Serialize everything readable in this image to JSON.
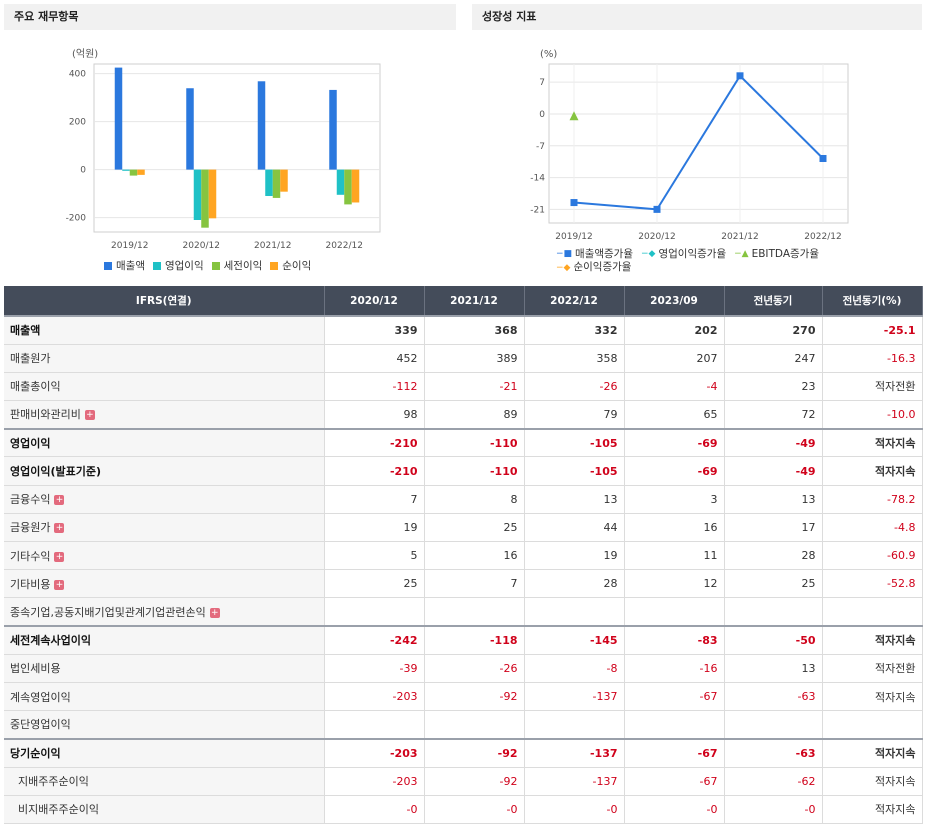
{
  "panels": {
    "left_title": "주요 재무항목",
    "right_title": "성장성 지표"
  },
  "chart_data": [
    {
      "type": "bar",
      "unit_label": "(억원)",
      "categories": [
        "2019/12",
        "2020/12",
        "2021/12",
        "2022/12"
      ],
      "yticks": [
        400,
        200,
        0,
        -200
      ],
      "ylim": [
        -260,
        440
      ],
      "grid": true,
      "legend": "bottom",
      "series": [
        {
          "name": "매출액",
          "color": "#2b78de",
          "values": [
            425,
            339,
            368,
            332
          ]
        },
        {
          "name": "영업이익",
          "color": "#1fc1c6",
          "values": [
            -5,
            -210,
            -110,
            -105
          ]
        },
        {
          "name": "세전이익",
          "color": "#86c440",
          "values": [
            -25,
            -242,
            -118,
            -145
          ]
        },
        {
          "name": "순이익",
          "color": "#ffa522",
          "values": [
            -22,
            -203,
            -92,
            -137
          ]
        }
      ]
    },
    {
      "type": "line",
      "unit_label": "(%)",
      "categories": [
        "2019/12",
        "2020/12",
        "2021/12",
        "2022/12"
      ],
      "yticks": [
        "7",
        "0",
        "-7",
        "-14",
        "-21"
      ],
      "ylim": [
        -24,
        11
      ],
      "grid": true,
      "legend": "bottom",
      "series": [
        {
          "name": "매출액증가율",
          "color": "#2b78de",
          "marker": "square",
          "values": [
            -19.5,
            -21,
            8.4,
            -9.8
          ]
        },
        {
          "name": "영업이익증가율",
          "color": "#1fc1c6",
          "marker": "diamond",
          "values": [
            null,
            null,
            null,
            null
          ]
        },
        {
          "name": "EBITDA증가율",
          "color": "#86c440",
          "marker": "triangle",
          "values": [
            -0.5,
            null,
            null,
            null
          ]
        },
        {
          "name": "순이익증가율",
          "color": "#ffa522",
          "marker": "diamond",
          "values": [
            null,
            null,
            null,
            null
          ]
        }
      ]
    }
  ],
  "table": {
    "headers": [
      "IFRS(연결)",
      "2020/12",
      "2021/12",
      "2022/12",
      "2023/09",
      "전년동기",
      "전년동기(%)"
    ],
    "rows": [
      {
        "label": "매출액",
        "bold": true,
        "major": true,
        "values": [
          "339",
          "368",
          "332",
          "202",
          "270",
          "-25.1"
        ]
      },
      {
        "label": "매출원가",
        "values": [
          "452",
          "389",
          "358",
          "207",
          "247",
          "-16.3"
        ]
      },
      {
        "label": "매출총이익",
        "values": [
          "-112",
          "-21",
          "-26",
          "-4",
          "23",
          "적자전환"
        ]
      },
      {
        "label": "판매비와관리비",
        "plus": true,
        "values": [
          "98",
          "89",
          "79",
          "65",
          "72",
          "-10.0"
        ]
      },
      {
        "label": "영업이익",
        "bold": true,
        "major": true,
        "values": [
          "-210",
          "-110",
          "-105",
          "-69",
          "-49",
          "적자지속"
        ]
      },
      {
        "label": "영업이익(발표기준)",
        "bold": true,
        "values": [
          "-210",
          "-110",
          "-105",
          "-69",
          "-49",
          "적자지속"
        ]
      },
      {
        "label": "금융수익",
        "plus": true,
        "values": [
          "7",
          "8",
          "13",
          "3",
          "13",
          "-78.2"
        ]
      },
      {
        "label": "금융원가",
        "plus": true,
        "values": [
          "19",
          "25",
          "44",
          "16",
          "17",
          "-4.8"
        ]
      },
      {
        "label": "기타수익",
        "plus": true,
        "values": [
          "5",
          "16",
          "19",
          "11",
          "28",
          "-60.9"
        ]
      },
      {
        "label": "기타비용",
        "plus": true,
        "values": [
          "25",
          "7",
          "28",
          "12",
          "25",
          "-52.8"
        ]
      },
      {
        "label": "종속기업,공동지배기업및관계기업관련손익",
        "plus": true,
        "values": [
          "",
          "",
          "",
          "",
          "",
          ""
        ]
      },
      {
        "label": "세전계속사업이익",
        "bold": true,
        "major": true,
        "values": [
          "-242",
          "-118",
          "-145",
          "-83",
          "-50",
          "적자지속"
        ]
      },
      {
        "label": "법인세비용",
        "values": [
          "-39",
          "-26",
          "-8",
          "-16",
          "13",
          "적자전환"
        ]
      },
      {
        "label": "계속영업이익",
        "values": [
          "-203",
          "-92",
          "-137",
          "-67",
          "-63",
          "적자지속"
        ]
      },
      {
        "label": "중단영업이익",
        "values": [
          "",
          "",
          "",
          "",
          "",
          ""
        ]
      },
      {
        "label": "당기순이익",
        "bold": true,
        "major": true,
        "values": [
          "-203",
          "-92",
          "-137",
          "-67",
          "-63",
          "적자지속"
        ]
      },
      {
        "label": "지배주주순이익",
        "sub": true,
        "values": [
          "-203",
          "-92",
          "-137",
          "-67",
          "-62",
          "적자지속"
        ]
      },
      {
        "label": "비지배주주순이익",
        "sub": true,
        "values": [
          "-0",
          "-0",
          "-0",
          "-0",
          "-0",
          "적자지속"
        ]
      }
    ]
  }
}
